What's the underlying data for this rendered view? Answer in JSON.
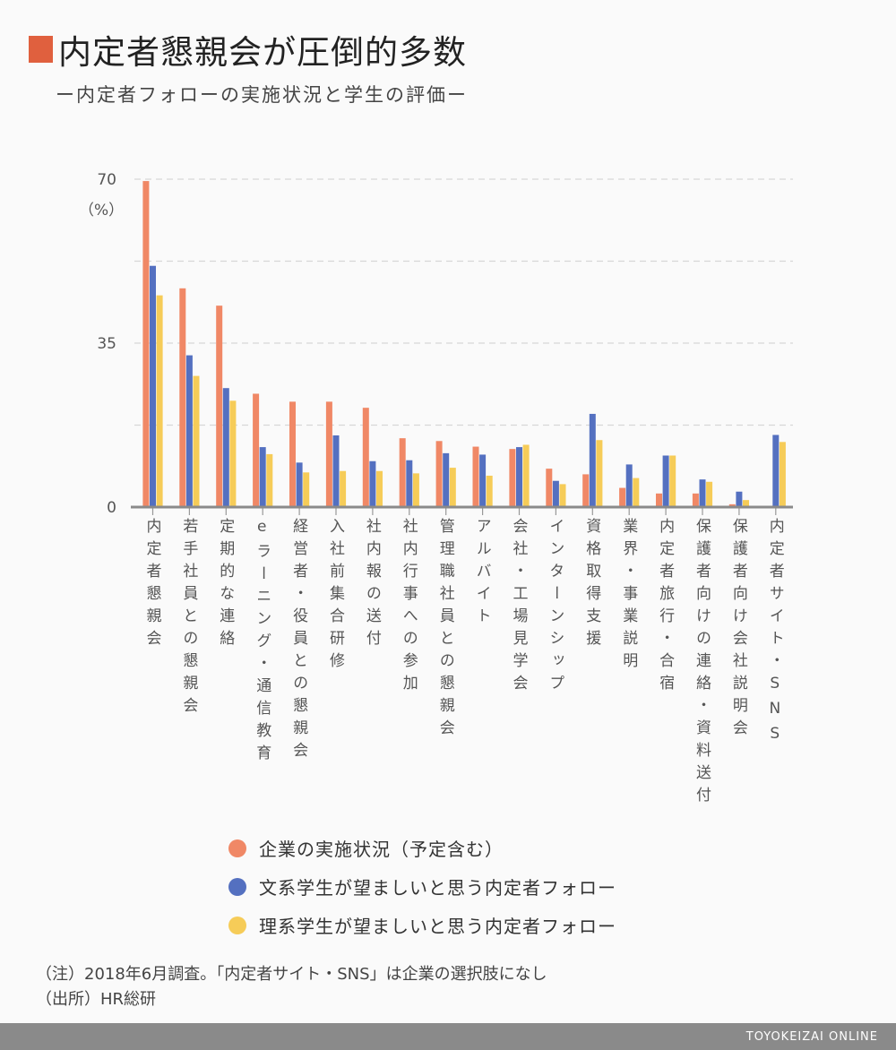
{
  "title": "内定者懇親会が圧倒的多数",
  "subtitle": "ー内定者フォローの実施状況と学生の評価ー",
  "chart_data": {
    "type": "bar",
    "title": "内定者懇親会が圧倒的多数",
    "ylabel": "（%）",
    "ylim": [
      0,
      70
    ],
    "yticks": [
      0,
      35,
      70
    ],
    "gridlines": [
      17.5,
      35,
      52.5,
      70
    ],
    "grid": true,
    "legend_position": "bottom",
    "categories": [
      "内定者懇親会",
      "若手社員との懇親会",
      "定期的な連絡",
      "eラーニング・通信教育",
      "経営者・役員との懇親会",
      "入社前集合研修",
      "社内報の送付",
      "社内行事への参加",
      "管理職社員との懇親会",
      "アルバイト",
      "会社・工場見学会",
      "インターンシップ",
      "資格取得支援",
      "業界・事業説明",
      "内定者旅行・合宿",
      "保護者向けの連絡・資料送付",
      "保護者向け会社説明会",
      "内定者サイト・SNS"
    ],
    "series": [
      {
        "name": "企業の実施状況（予定含む）",
        "color": "#f08866",
        "values": [
          69.6,
          46.7,
          43.0,
          24.2,
          22.5,
          22.5,
          21.2,
          14.7,
          14.1,
          12.9,
          12.4,
          8.2,
          7.0,
          4.1,
          2.9,
          2.9,
          0.6,
          null
        ]
      },
      {
        "name": "文系学生が望ましいと思う内定者フォロー",
        "color": "#5470c0",
        "values": [
          51.5,
          32.4,
          25.4,
          12.8,
          9.5,
          15.3,
          9.8,
          10.0,
          11.5,
          11.2,
          12.8,
          5.6,
          19.9,
          9.1,
          11.0,
          5.9,
          3.3,
          15.4
        ]
      },
      {
        "name": "理系学生が望ましいと思う内定者フォロー",
        "color": "#f6cc58",
        "values": [
          45.2,
          28.0,
          22.7,
          11.3,
          7.4,
          7.7,
          7.7,
          7.2,
          8.4,
          6.7,
          13.3,
          4.9,
          14.3,
          6.2,
          11.0,
          5.4,
          1.5,
          13.9
        ]
      }
    ]
  },
  "notes": [
    "（注）2018年6月調査。「内定者サイト・SNS」は企業の選択肢になし",
    "（出所）HR総研"
  ],
  "footer": "TOYOKEIZAI ONLINE",
  "accent_color": "#e0603e"
}
